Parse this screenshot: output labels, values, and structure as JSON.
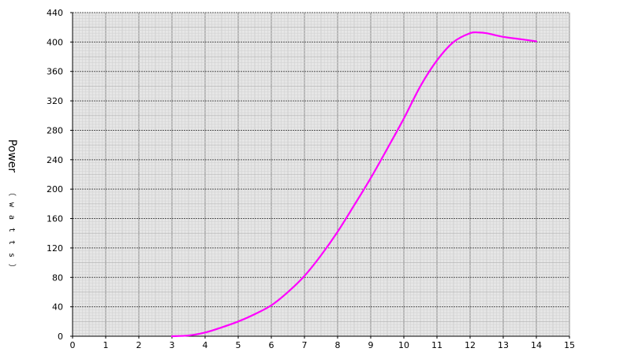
{
  "chart_data": {
    "type": "line",
    "title": "",
    "xlabel": "",
    "ylabel": "Power",
    "ylabel_unit": "（watts）",
    "xlim": [
      0,
      15
    ],
    "ylim": [
      0,
      440
    ],
    "x_ticks": [
      0,
      1,
      2,
      3,
      4,
      5,
      6,
      7,
      8,
      9,
      10,
      11,
      12,
      13,
      14,
      15
    ],
    "y_ticks": [
      0,
      40,
      80,
      120,
      160,
      200,
      240,
      280,
      320,
      360,
      400,
      440
    ],
    "grid": true,
    "series": [
      {
        "color": "#ff00ff",
        "x": [
          3,
          3.5,
          4,
          4.5,
          5,
          5.5,
          6,
          6.5,
          7,
          7.5,
          8,
          8.5,
          9,
          9.5,
          10,
          10.5,
          11,
          11.5,
          12,
          12.25,
          12.5,
          13,
          13.5,
          14
        ],
        "y": [
          0,
          1,
          5,
          12,
          20,
          30,
          42,
          60,
          82,
          110,
          142,
          178,
          215,
          255,
          296,
          340,
          375,
          400,
          412,
          413,
          412,
          407,
          404,
          401
        ]
      }
    ]
  }
}
